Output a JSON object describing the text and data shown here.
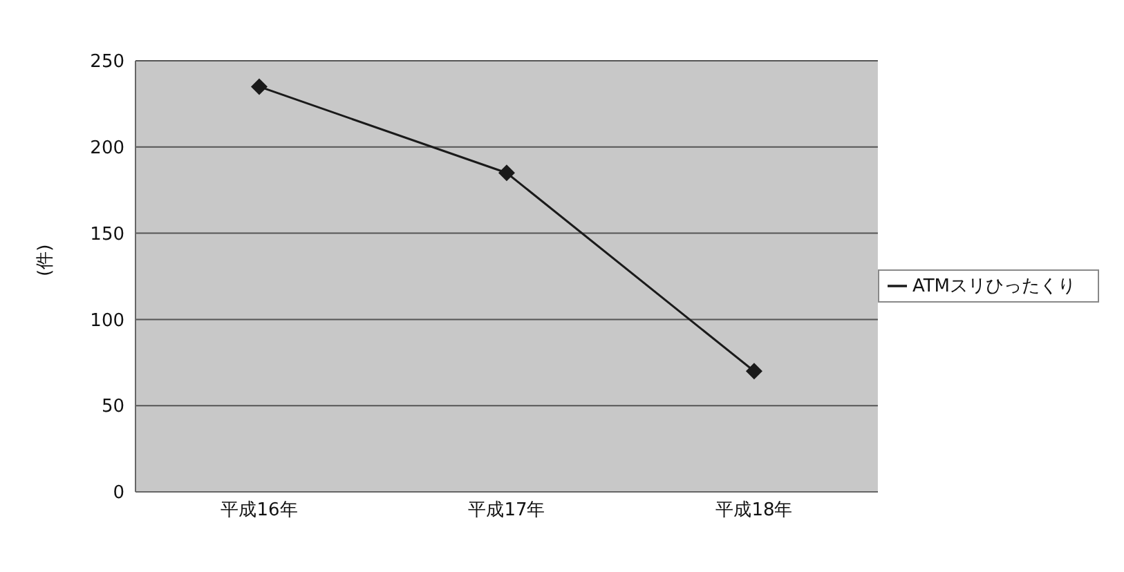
{
  "chart_data": {
    "type": "line",
    "ylabel": "(件)",
    "categories": [
      "平成16年",
      "平成17年",
      "平成18年"
    ],
    "series": [
      {
        "name": "ATMスリひったくり",
        "color": "#1a1a1a",
        "values": [
          235,
          185,
          70
        ]
      }
    ],
    "ylim": [
      0,
      250
    ],
    "yticks": [
      0,
      50,
      100,
      150,
      200,
      250
    ],
    "grid": "y",
    "legend": "right",
    "marker": "diamond",
    "line_style": "solid"
  }
}
